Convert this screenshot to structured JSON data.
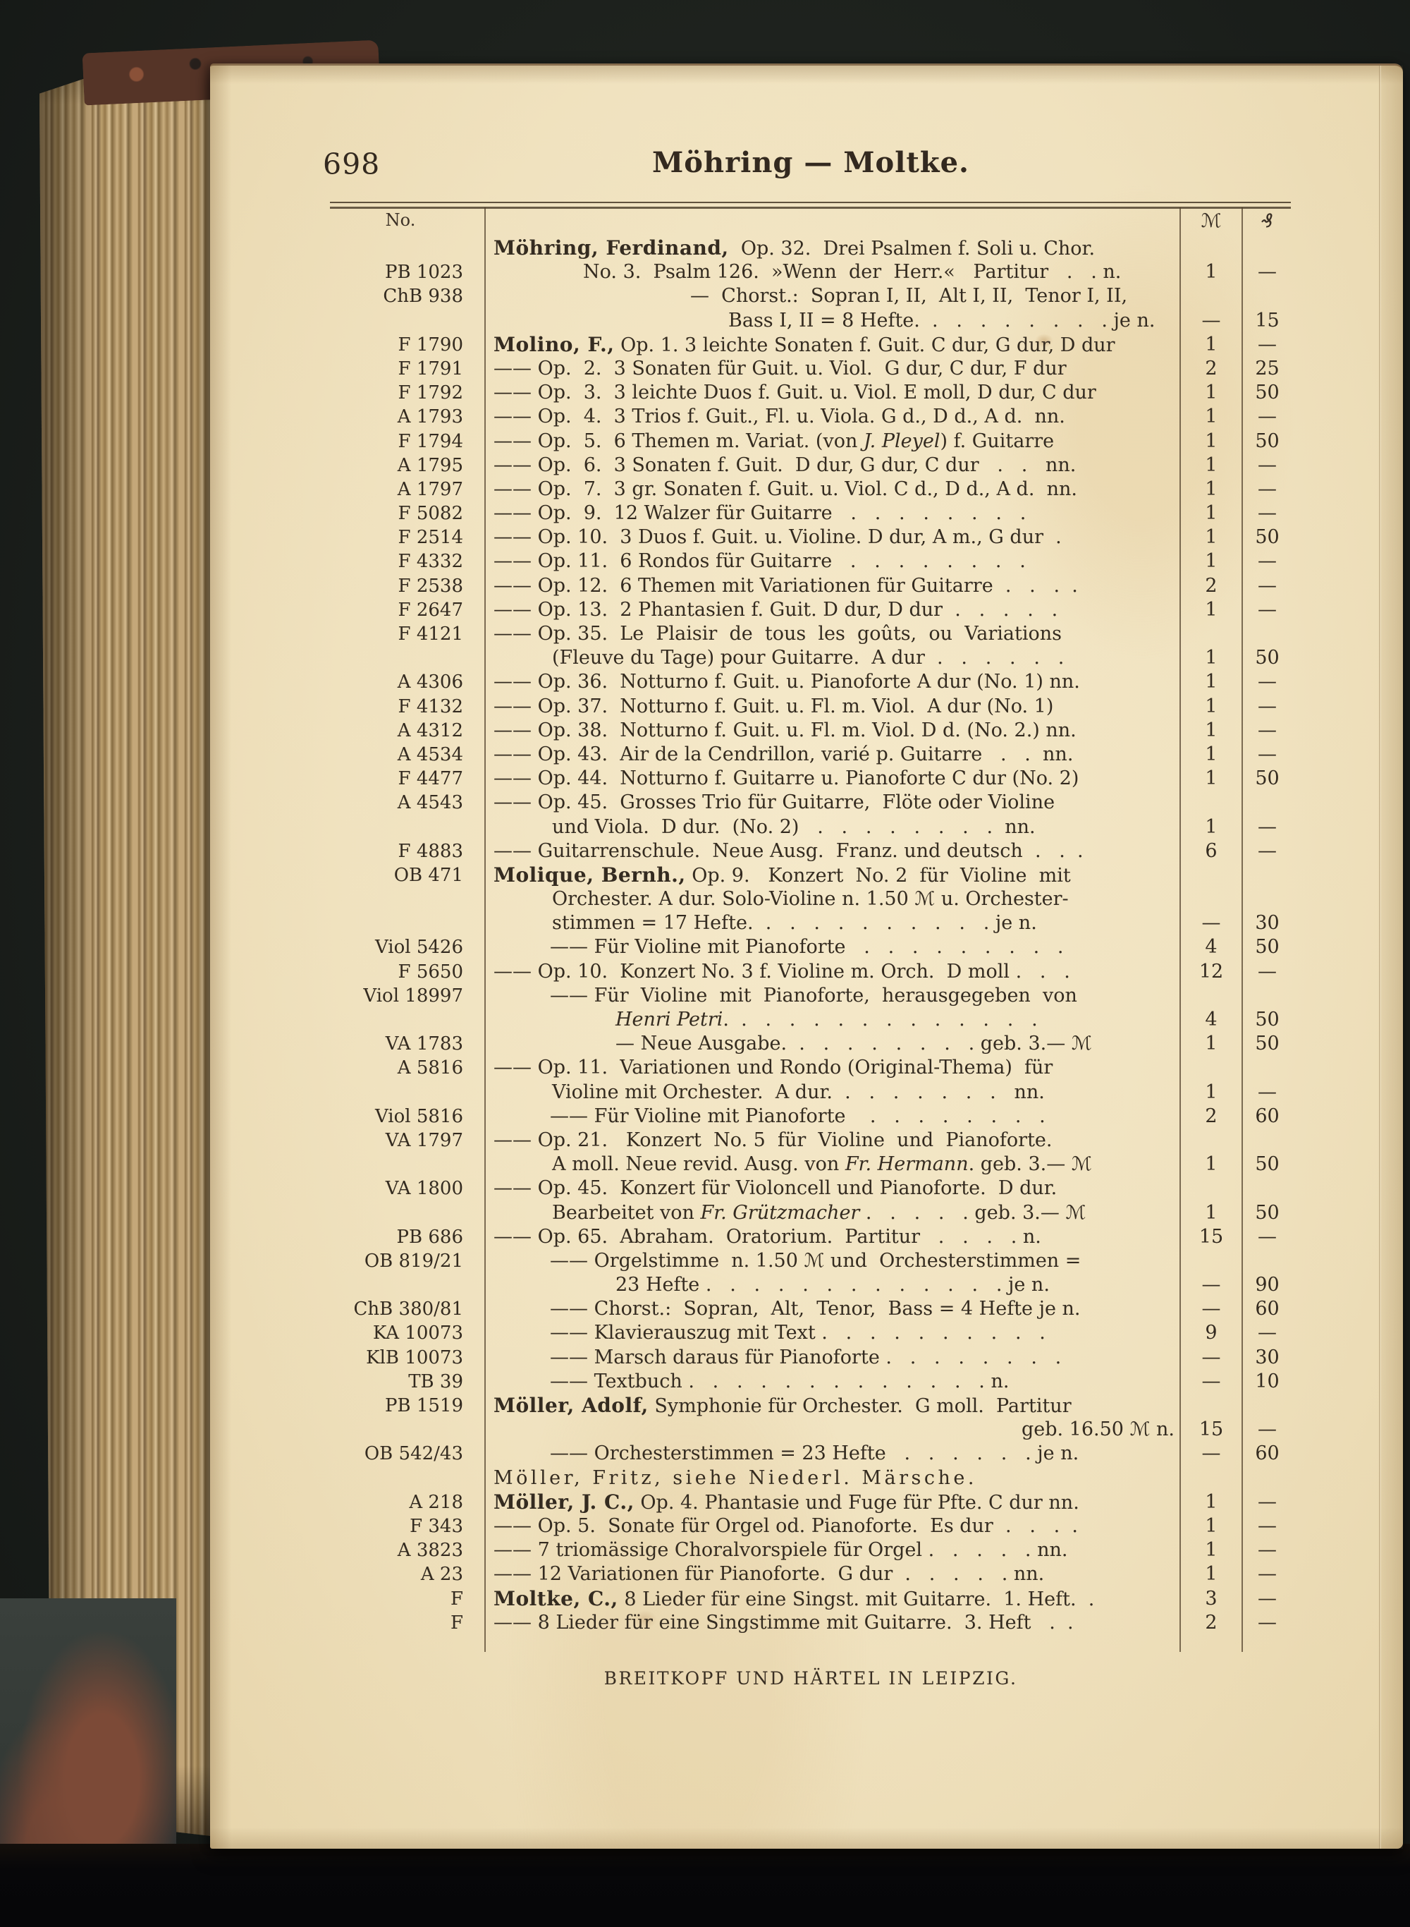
{
  "page": {
    "number": "698",
    "header_title": "Möhring — Moltke.",
    "footer": "BREITKOPF UND HÄRTEL IN LEIPZIG.",
    "columns": {
      "no": "No.",
      "mark": "ℳ",
      "pfennig": "₰"
    }
  },
  "colors": {
    "paper": "#f0e2bf",
    "ink": "#342b20",
    "background": "#1c201c",
    "cover_marble": "#553427",
    "fore_edge_tan": "#c4a779"
  },
  "catalog": {
    "lines": [
      {
        "no": "",
        "ind": "a0",
        "seg": [
          [
            "b",
            "Möhring, Ferdinand,"
          ],
          [
            "",
            "  Op. 32.  Drei Psalmen f. Soli u. Chor."
          ]
        ],
        "m": "",
        "pf": ""
      },
      {
        "no": "PB 1023",
        "ind": "i2",
        "seg": [
          [
            "",
            "No. 3.  Psalm 126.  »Wenn  der  Herr.«   Partitur   .   . n."
          ]
        ],
        "m": "1",
        "pf": "—"
      },
      {
        "no": "ChB 938",
        "ind": "i3",
        "seg": [
          [
            "",
            "—  Chorst.:  Sopran I, II,  Alt I, II,  Tenor I, II,"
          ]
        ],
        "m": "",
        "pf": ""
      },
      {
        "no": "",
        "ind": "i4",
        "seg": [
          [
            "",
            "Bass I, II = 8 Hefte.  .   .   .   .   .   .   .   . je n."
          ]
        ],
        "m": "—",
        "pf": "15"
      },
      {
        "no": "F 1790",
        "ind": "a0",
        "seg": [
          [
            "b",
            "Molino, F.,"
          ],
          [
            "",
            " Op. 1. 3 leichte Sonaten f. Guit. C dur, G dur, D dur"
          ]
        ],
        "m": "1",
        "pf": "—"
      },
      {
        "no": "F 1791",
        "ind": "d1",
        "seg": [
          [
            "",
            "—— Op.  2.  3 Sonaten für Guit. u. Viol.  G dur, C dur, F dur"
          ]
        ],
        "m": "2",
        "pf": "25"
      },
      {
        "no": "F 1792",
        "ind": "d1",
        "seg": [
          [
            "",
            "—— Op.  3.  3 leichte Duos f. Guit. u. Viol. E moll, D dur, C dur"
          ]
        ],
        "m": "1",
        "pf": "50"
      },
      {
        "no": "A 1793",
        "ind": "d1",
        "seg": [
          [
            "",
            "—— Op.  4.  3 Trios f. Guit., Fl. u. Viola. G d., D d., A d.  nn."
          ]
        ],
        "m": "1",
        "pf": "—"
      },
      {
        "no": "F 1794",
        "ind": "d1",
        "seg": [
          [
            "",
            "—— Op.  5.  6 Themen m. Variat. (von "
          ],
          [
            "i",
            "J. Pleyel"
          ],
          [
            ""
          ],
          [
            "",
            ") f. Guitarre"
          ]
        ],
        "m": "1",
        "pf": "50"
      },
      {
        "no": "A 1795",
        "ind": "d1",
        "seg": [
          [
            "",
            "—— Op.  6.  3 Sonaten f. Guit.  D dur, G dur, C dur   .   .   nn."
          ]
        ],
        "m": "1",
        "pf": "—"
      },
      {
        "no": "A 1797",
        "ind": "d1",
        "seg": [
          [
            "",
            "—— Op.  7.  3 gr. Sonaten f. Guit. u. Viol. C d., D d., A d.  nn."
          ]
        ],
        "m": "1",
        "pf": "—"
      },
      {
        "no": "F 5082",
        "ind": "d1",
        "seg": [
          [
            "",
            "—— Op.  9.  12 Walzer für Guitarre   .   .   .   .   .   .   .   ."
          ]
        ],
        "m": "1",
        "pf": "—"
      },
      {
        "no": "F 2514",
        "ind": "d1",
        "seg": [
          [
            "",
            "—— Op. 10.  3 Duos f. Guit. u. Violine. D dur, A m., G dur  ."
          ]
        ],
        "m": "1",
        "pf": "50"
      },
      {
        "no": "F 4332",
        "ind": "d1",
        "seg": [
          [
            "",
            "—— Op. 11.  6 Rondos für Guitarre   .   .   .   .   .   .   .   ."
          ]
        ],
        "m": "1",
        "pf": "—"
      },
      {
        "no": "F 2538",
        "ind": "d1",
        "seg": [
          [
            "",
            "—— Op. 12.  6 Themen mit Variationen für Guitarre  .   .   .  ."
          ]
        ],
        "m": "2",
        "pf": "—"
      },
      {
        "no": "F 2647",
        "ind": "d1",
        "seg": [
          [
            "",
            "—— Op. 13.  2 Phantasien f. Guit. D dur, D dur  .   .   .   .   ."
          ]
        ],
        "m": "1",
        "pf": "—"
      },
      {
        "no": "F 4121",
        "ind": "d1",
        "seg": [
          [
            "",
            "—— Op. 35.  Le  Plaisir  de  tous  les  goûts,  ou  Variations"
          ]
        ],
        "m": "",
        "pf": ""
      },
      {
        "no": "",
        "ind": "c1",
        "seg": [
          [
            "",
            "(Fleuve du Tage) pour Guitarre.  A dur  .   .   .   .   .   ."
          ]
        ],
        "m": "1",
        "pf": "50"
      },
      {
        "no": "A 4306",
        "ind": "d1",
        "seg": [
          [
            "",
            "—— Op. 36.  Notturno f. Guit. u. Pianoforte A dur (No. 1) nn."
          ]
        ],
        "m": "1",
        "pf": "—"
      },
      {
        "no": "F 4132",
        "ind": "d1",
        "seg": [
          [
            "",
            "—— Op. 37.  Notturno f. Guit. u. Fl. m. Viol.  A dur (No. 1)"
          ]
        ],
        "m": "1",
        "pf": "—"
      },
      {
        "no": "A 4312",
        "ind": "d1",
        "seg": [
          [
            "",
            "—— Op. 38.  Notturno f. Guit. u. Fl. m. Viol. D d. (No. 2.) nn."
          ]
        ],
        "m": "1",
        "pf": "—"
      },
      {
        "no": "A 4534",
        "ind": "d1",
        "seg": [
          [
            "",
            "—— Op. 43.  Air de la Cendrillon, varié p. Guitarre   .   .  nn."
          ]
        ],
        "m": "1",
        "pf": "—"
      },
      {
        "no": "F 4477",
        "ind": "d1",
        "seg": [
          [
            "",
            "—— Op. 44.  Notturno f. Guitarre u. Pianoforte C dur (No. 2)"
          ]
        ],
        "m": "1",
        "pf": "50"
      },
      {
        "no": "A 4543",
        "ind": "d1",
        "seg": [
          [
            "",
            "—— Op. 45.  Grosses Trio für Guitarre,  Flöte oder Violine"
          ]
        ],
        "m": "",
        "pf": ""
      },
      {
        "no": "",
        "ind": "c1",
        "seg": [
          [
            "",
            "und Viola.  D dur.  (No. 2)   .   .   .   .   .   .   .   .  nn."
          ]
        ],
        "m": "1",
        "pf": "—"
      },
      {
        "no": "F 4883",
        "ind": "d1",
        "seg": [
          [
            "",
            "—— Guitarrenschule.  Neue Ausg.  Franz. und deutsch  .   .  ."
          ]
        ],
        "m": "6",
        "pf": "—"
      },
      {
        "no": "OB 471",
        "ind": "a0",
        "seg": [
          [
            "b",
            "Molique, Bernh.,"
          ],
          [
            "",
            " Op. 9.   Konzert  No. 2  für  Violine  mit"
          ]
        ],
        "m": "",
        "pf": ""
      },
      {
        "no": "",
        "ind": "c1",
        "seg": [
          [
            "",
            "Orchester. A dur. Solo-Violine n. 1.50 "
          ],
          [
            "m",
            "ℳ"
          ],
          [
            "",
            " u. Orchester-"
          ]
        ],
        "m": "",
        "pf": ""
      },
      {
        "no": "",
        "ind": "c1",
        "seg": [
          [
            "",
            "stimmen = 17 Hefte.  .   .   .   .   .   .   .   .   .   . je n."
          ]
        ],
        "m": "—",
        "pf": "30"
      },
      {
        "no": "Viol 5426",
        "ind": "d2",
        "seg": [
          [
            "",
            "—— Für Violine mit Pianoforte   .   .   .   .   .   .   .   .   ."
          ]
        ],
        "m": "4",
        "pf": "50"
      },
      {
        "no": "F 5650",
        "ind": "d1",
        "seg": [
          [
            "",
            "—— Op. 10.  Konzert No. 3 f. Violine m. Orch.  D moll .   .   ."
          ]
        ],
        "m": "12",
        "pf": "—"
      },
      {
        "no": "Viol 18997",
        "ind": "d2",
        "seg": [
          [
            "",
            "—— Für  Violine  mit  Pianoforte,  herausgegeben  von"
          ]
        ],
        "m": "",
        "pf": ""
      },
      {
        "no": "",
        "ind": "c2",
        "seg": [
          [
            "i",
            "Henri Petri"
          ],
          [
            "",
            ".  .   .   .   .   .   .   .   .   .   .   .   .   ."
          ]
        ],
        "m": "4",
        "pf": "50"
      },
      {
        "no": "VA 1783",
        "ind": "d3",
        "seg": [
          [
            "",
            "— Neue Ausgabe.  .   .   .   .   .   .   .   . geb. 3.— "
          ],
          [
            "m",
            "ℳ"
          ]
        ],
        "m": "1",
        "pf": "50"
      },
      {
        "no": "A 5816",
        "ind": "d1",
        "seg": [
          [
            "",
            "—— Op. 11.  Variationen und Rondo (Original-Thema)  für"
          ]
        ],
        "m": "",
        "pf": ""
      },
      {
        "no": "",
        "ind": "c1",
        "seg": [
          [
            "",
            "Violine mit Orchester.  A dur.  .   .   .   .   .   .   .   nn."
          ]
        ],
        "m": "1",
        "pf": "—"
      },
      {
        "no": "Viol 5816",
        "ind": "d2",
        "seg": [
          [
            "",
            "—— Für Violine mit Pianoforte    .   .   .   .   .   .   .   ."
          ]
        ],
        "m": "2",
        "pf": "60"
      },
      {
        "no": "VA 1797",
        "ind": "d1",
        "seg": [
          [
            "",
            "—— Op. 21.   Konzert  No. 5  für  Violine  und  Pianoforte."
          ]
        ],
        "m": "",
        "pf": ""
      },
      {
        "no": "",
        "ind": "c1",
        "seg": [
          [
            "",
            "A moll. Neue revid. Ausg. von "
          ],
          [
            "i",
            "Fr. Hermann"
          ],
          [
            "",
            ". geb. 3.— "
          ],
          [
            "m",
            "ℳ"
          ]
        ],
        "m": "1",
        "pf": "50"
      },
      {
        "no": "VA 1800",
        "ind": "d1",
        "seg": [
          [
            "",
            "—— Op. 45.  Konzert für Violoncell und Pianoforte.  D dur."
          ]
        ],
        "m": "",
        "pf": ""
      },
      {
        "no": "",
        "ind": "c1",
        "seg": [
          [
            "",
            "Bearbeitet von "
          ],
          [
            "i",
            "Fr. Grützmacher"
          ],
          [
            "",
            " .   .   .   .   . geb. 3.— "
          ],
          [
            "m",
            "ℳ"
          ]
        ],
        "m": "1",
        "pf": "50"
      },
      {
        "no": "PB 686",
        "ind": "d1",
        "seg": [
          [
            "",
            "—— Op. 65.  Abraham.  Oratorium.  Partitur   .   .   .   . n."
          ]
        ],
        "m": "15",
        "pf": "—"
      },
      {
        "no": "OB 819/21",
        "ind": "d2",
        "seg": [
          [
            "",
            "—— Orgelstimme  n. 1.50 "
          ],
          [
            "m",
            "ℳ"
          ],
          [
            "",
            " und  Orchesterstimmen ="
          ]
        ],
        "m": "",
        "pf": ""
      },
      {
        "no": "",
        "ind": "c2",
        "seg": [
          [
            "",
            "23 Hefte .   .   .   .   .   .   .   .   .   .   .   .   . je n."
          ]
        ],
        "m": "—",
        "pf": "90"
      },
      {
        "no": "ChB 380/81",
        "ind": "d2",
        "seg": [
          [
            "",
            "—— Chorst.:  Sopran,  Alt,  Tenor,  Bass = 4 Hefte je n."
          ]
        ],
        "m": "—",
        "pf": "60"
      },
      {
        "no": "KA 10073",
        "ind": "d2",
        "seg": [
          [
            "",
            "—— Klavierauszug mit Text .   .   .   .   .   .   .   .   .   ."
          ]
        ],
        "m": "9",
        "pf": "—"
      },
      {
        "no": "KlB 10073",
        "ind": "d2",
        "seg": [
          [
            "",
            "—— Marsch daraus für Pianoforte .   .   .   .   .   .   .   ."
          ]
        ],
        "m": "—",
        "pf": "30"
      },
      {
        "no": "TB 39",
        "ind": "d2",
        "seg": [
          [
            "",
            "—— Textbuch .   .   .   .   .   .   .   .   .   .   .   .   . n."
          ]
        ],
        "m": "—",
        "pf": "10"
      },
      {
        "no": "PB 1519",
        "ind": "a0",
        "seg": [
          [
            "b",
            "Möller, Adolf,"
          ],
          [
            "",
            " Symphonie für Orchester.  G moll.  Partitur"
          ]
        ],
        "m": "",
        "pf": ""
      },
      {
        "no": "",
        "ind": "cR",
        "seg": [
          [
            "",
            "geb. 16.50 "
          ],
          [
            "m",
            "ℳ"
          ],
          [
            "",
            " n."
          ]
        ],
        "m": "15",
        "pf": "—"
      },
      {
        "no": "OB 542/43",
        "ind": "d2",
        "seg": [
          [
            "",
            "—— Orchesterstimmen = 23 Hefte   .   .   .   .   .   . je n."
          ]
        ],
        "m": "—",
        "pf": "60"
      },
      {
        "no": "",
        "ind": "a0",
        "seg": [
          [
            "s",
            "Möller, Fritz, siehe Niederl. Märsche."
          ]
        ],
        "m": "",
        "pf": ""
      },
      {
        "no": "A 218",
        "ind": "a0",
        "seg": [
          [
            "b",
            "Möller, J. C.,"
          ],
          [
            "",
            " Op. 4. Phantasie und Fuge für Pfte. C dur nn."
          ]
        ],
        "m": "1",
        "pf": "—"
      },
      {
        "no": "F 343",
        "ind": "d1",
        "seg": [
          [
            "",
            "—— Op. 5.  Sonate für Orgel od. Pianoforte.  Es dur  .   .   .  ."
          ]
        ],
        "m": "1",
        "pf": "—"
      },
      {
        "no": "A 3823",
        "ind": "d1",
        "seg": [
          [
            "",
            "—— 7 triomässige Choralvorspiele für Orgel .   .   .   .   . nn."
          ]
        ],
        "m": "1",
        "pf": "—"
      },
      {
        "no": "A 23",
        "ind": "d1",
        "seg": [
          [
            "",
            "—— 12 Variationen für Pianoforte.  G dur  .   .   .   .   . nn."
          ]
        ],
        "m": "1",
        "pf": "—"
      },
      {
        "no": "F",
        "ind": "a0",
        "seg": [
          [
            "b",
            "Moltke, C.,"
          ],
          [
            "",
            " 8 Lieder für eine Singst. mit Guitarre.  1. Heft.  ."
          ]
        ],
        "m": "3",
        "pf": "—"
      },
      {
        "no": "F",
        "ind": "d1",
        "seg": [
          [
            "",
            "—— 8 Lieder für eine Singstimme mit Guitarre.  3. Heft   .  ."
          ]
        ],
        "m": "2",
        "pf": "—"
      }
    ]
  }
}
